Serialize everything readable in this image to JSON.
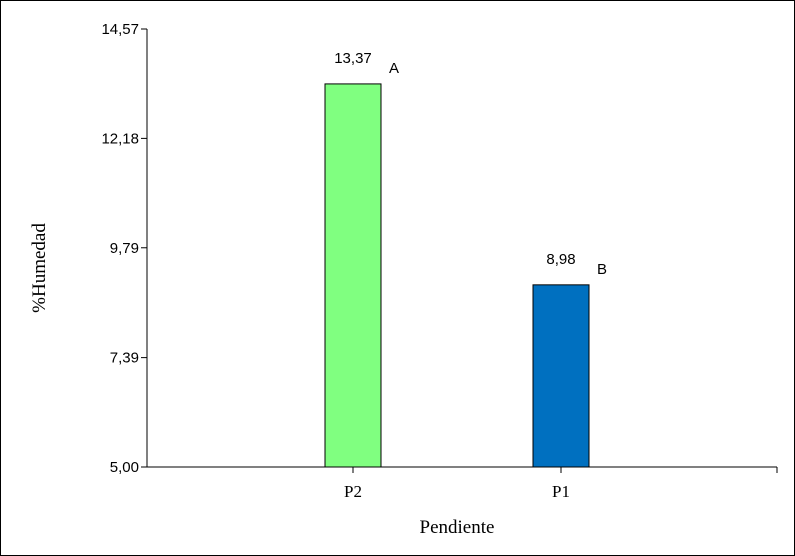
{
  "chart_data": {
    "type": "bar",
    "categories": [
      "P2",
      "P1"
    ],
    "values": [
      13.37,
      8.98
    ],
    "value_labels": [
      "13,37",
      "8,98"
    ],
    "significance_letters": [
      "A",
      "B"
    ],
    "colors": [
      "#80ff80",
      "#0070c0"
    ],
    "xlabel": "Pendiente",
    "ylabel": "%Humedad",
    "ylim": [
      5.0,
      14.57
    ],
    "yticks": [
      5.0,
      7.39,
      9.79,
      12.18,
      14.57
    ],
    "ytick_labels": [
      "5,00",
      "7,39",
      "9,79",
      "12,18",
      "14,57"
    ],
    "grid": false,
    "legend": "none"
  }
}
